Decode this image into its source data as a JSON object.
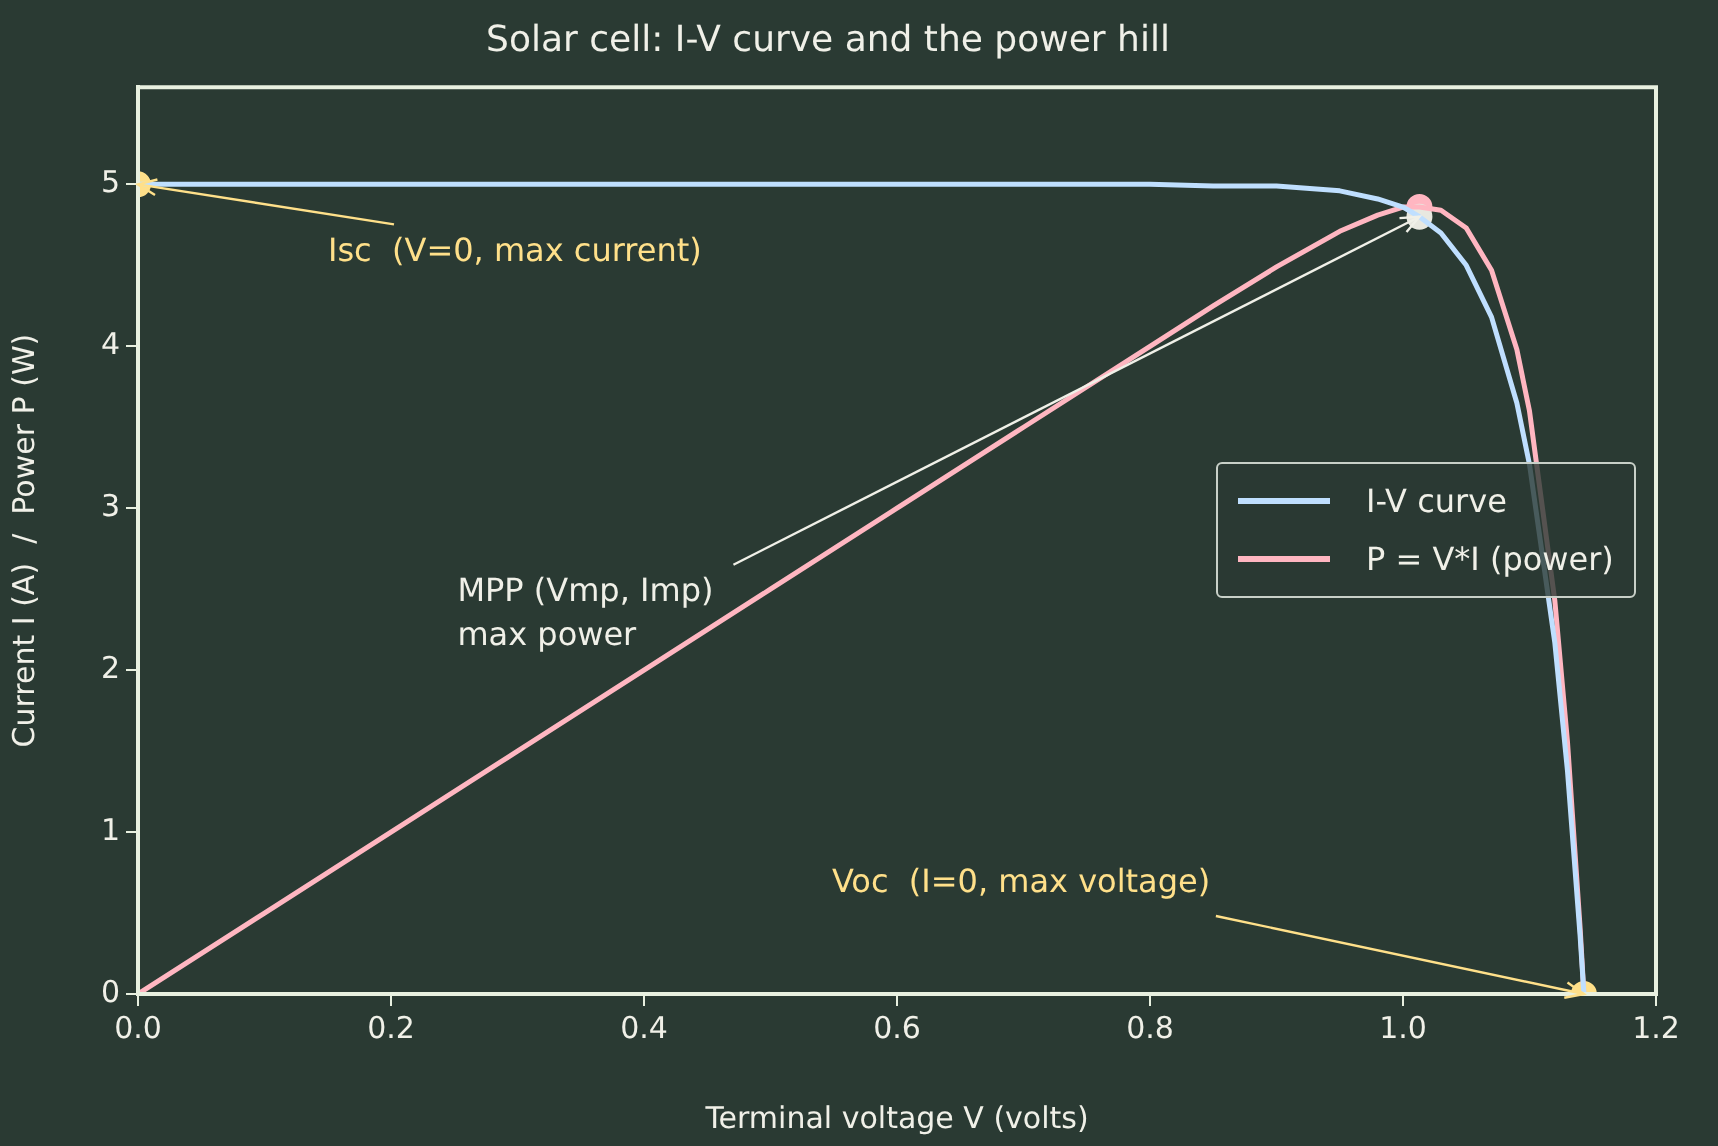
{
  "chart_data": {
    "type": "line",
    "title": "Solar cell: I-V curve and the power hill",
    "xlabel": "Terminal voltage V (volts)",
    "ylabel": "Current I (A)  /  Power P (W)",
    "xlim": [
      0,
      1.2
    ],
    "ylim": [
      0,
      5.6
    ],
    "xticks": [
      {
        "value": 0,
        "label": "0.0"
      },
      {
        "value": 0.2,
        "label": "0.2"
      },
      {
        "value": 0.4,
        "label": "0.4"
      },
      {
        "value": 0.6,
        "label": "0.6"
      },
      {
        "value": 0.8,
        "label": "0.8"
      },
      {
        "value": 1.0,
        "label": "1.0"
      },
      {
        "value": 1.2,
        "label": "1.2"
      }
    ],
    "yticks": [
      0,
      1,
      2,
      3,
      4,
      5
    ],
    "grid": false,
    "legend": "right",
    "marker": "none",
    "line_style": "solid",
    "series": [
      {
        "name": "I-V curve",
        "color": "#bfdfff",
        "x": [
          0,
          0.1,
          0.2,
          0.3,
          0.4,
          0.5,
          0.6,
          0.7,
          0.8,
          0.85,
          0.9,
          0.95,
          0.98,
          1.0,
          1.013,
          1.03,
          1.05,
          1.07,
          1.09,
          1.1,
          1.12,
          1.13,
          1.14,
          1.143
        ],
        "values": [
          5,
          5,
          5,
          5,
          5,
          5,
          5,
          5,
          5,
          4.99,
          4.99,
          4.96,
          4.91,
          4.86,
          4.8,
          4.7,
          4.5,
          4.18,
          3.65,
          3.27,
          2.17,
          1.38,
          0.36,
          0
        ]
      },
      {
        "name": "P = V*I (power)",
        "color": "#ffb6c1",
        "x": [
          0,
          0.1,
          0.2,
          0.3,
          0.4,
          0.5,
          0.6,
          0.7,
          0.8,
          0.85,
          0.9,
          0.95,
          0.98,
          1.0,
          1.013,
          1.03,
          1.05,
          1.07,
          1.09,
          1.1,
          1.12,
          1.13,
          1.14,
          1.143
        ],
        "values": [
          0,
          0.5,
          1.0,
          1.5,
          2.0,
          2.5,
          3.0,
          3.5,
          4.0,
          4.25,
          4.49,
          4.71,
          4.81,
          4.86,
          4.86,
          4.84,
          4.73,
          4.47,
          3.98,
          3.6,
          2.43,
          1.56,
          0.41,
          0
        ]
      },
      {
        "color": "#ffe08a",
        "type": "scatter",
        "marker": "circle",
        "x": [
          0,
          1.143
        ],
        "values": [
          5,
          0
        ]
      },
      {
        "color": "#e8e8e0",
        "type": "scatter",
        "marker": "circle",
        "x": [
          1.013
        ],
        "values": [
          4.8
        ]
      },
      {
        "color": "#ffb6c1",
        "type": "scatter",
        "marker": "circle",
        "x": [
          1.013
        ],
        "values": [
          4.86
        ]
      }
    ],
    "annotations": [
      {
        "text": "Isc  (V=0, max current)",
        "x": 0,
        "y": 5
      },
      {
        "text": "MPP (Vmp, Imp)\nmax power",
        "x": 1.013,
        "y": 4.8
      },
      {
        "text": "Voc  (I=0, max voltage)",
        "x": 1.143,
        "y": 0
      }
    ]
  }
}
